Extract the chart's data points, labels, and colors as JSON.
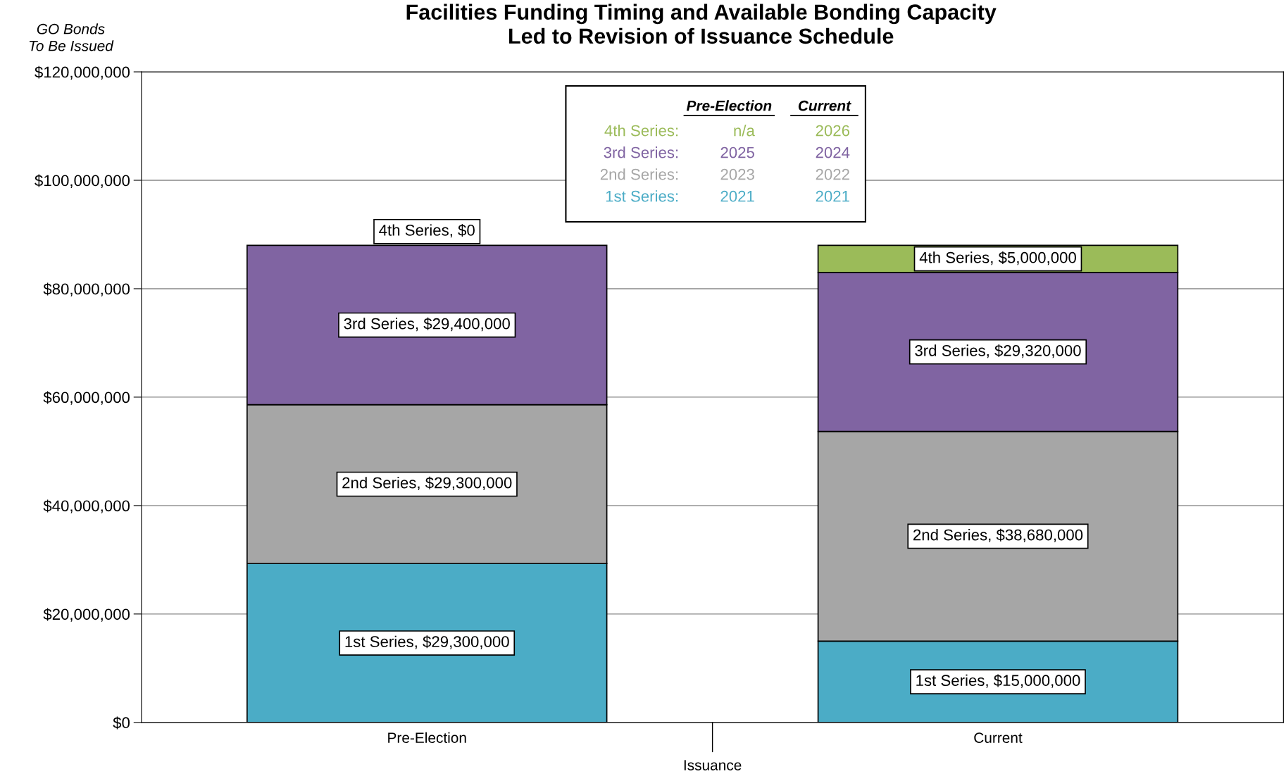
{
  "chart_data": {
    "type": "bar",
    "stacked": true,
    "title": "Facilities Funding Timing and Available Bonding Capacity\nLed to Revision of Issuance Schedule",
    "ylabel": "GO Bonds\nTo Be Issued",
    "xlabel": "Issuance",
    "categories": [
      "Pre-Election",
      "Current"
    ],
    "series": [
      {
        "color": "#4bacc6",
        "values": [
          29300000,
          15000000
        ],
        "value_labels": [
          "1st Series, $29,300,000",
          "1st Series, $15,000,000"
        ]
      },
      {
        "color": "#a6a6a6",
        "values": [
          29300000,
          38680000
        ],
        "value_labels": [
          "2nd Series, $29,300,000",
          "2nd Series, $38,680,000"
        ]
      },
      {
        "color": "#8064a2",
        "values": [
          29400000,
          29320000
        ],
        "value_labels": [
          "3rd Series, $29,400,000",
          "3rd Series, $29,320,000"
        ]
      },
      {
        "color": "#9bbb59",
        "values": [
          0,
          5000000
        ],
        "value_labels": [
          "4th Series, $0",
          "4th Series, $5,000,000"
        ]
      }
    ],
    "ylim": [
      0,
      120000000
    ],
    "yticks": [
      {
        "value": 0,
        "label": "$0"
      },
      {
        "value": 20000000,
        "label": "$20,000,000"
      },
      {
        "value": 40000000,
        "label": "$40,000,000"
      },
      {
        "value": 60000000,
        "label": "$60,000,000"
      },
      {
        "value": 80000000,
        "label": "$80,000,000"
      },
      {
        "value": 100000000,
        "label": "$100,000,000"
      },
      {
        "value": 120000000,
        "label": "$120,000,000"
      }
    ],
    "grid": "y",
    "annotations": [
      "Pre-Election",
      "Current",
      "4th Series:",
      "n/a",
      "2026",
      "3rd Series:",
      "2025",
      "2024",
      "2nd Series:",
      "2023",
      "2022",
      "1st Series:",
      "2021",
      "2021"
    ]
  }
}
